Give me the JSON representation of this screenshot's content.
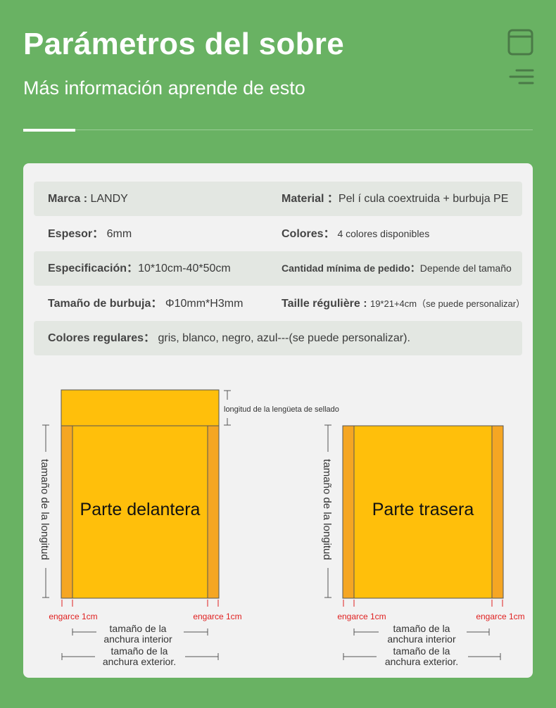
{
  "header": {
    "title": "Parámetros del sobre",
    "subtitle": "Más información aprende de esto"
  },
  "specs": {
    "brand_key": "Marca : ",
    "brand_val": "LANDY",
    "material_key": "Material ：",
    "material_val": "Pel í cula coextruida + burbuja PE",
    "thickness_key": "Espesor：",
    "thickness_val": " 6mm",
    "colors_key": "Colores：",
    "colors_val": " 4 colores disponibles",
    "spec_key": "Especificación：",
    "spec_val": "10*10cm-40*50cm",
    "moq_key": "Cantidad mínima de pedido：",
    "moq_val": "Depende del tamaño",
    "bubble_key": "Tamaño de burbuja：",
    "bubble_val": " Φ10mm*H3mm",
    "regular_size_key": "Taille régulière : ",
    "regular_size_val": "19*21+4cm（se puede personalizar）",
    "regular_colors_key": "Colores regulares：",
    "regular_colors_val": " gris, blanco, negro, azul---(se puede personalizar)."
  },
  "diagram": {
    "front_label": "Parte delantera",
    "back_label": "Parte trasera",
    "flap_label": "longitud de la lengüeta de sellado",
    "length_label": "tamaño de la longitud",
    "crimp_label": "engarce 1cm",
    "inner_width_line1": "tamaño de la",
    "inner_width_line2": "anchura interior",
    "outer_width_line1": "tamaño de la",
    "outer_width_line2": "anchura exterior."
  },
  "colors": {
    "background": "#69b263",
    "card": "#f2f2f2",
    "envelope_fill": "#ffbf0b",
    "crimp_fill": "#f5a623",
    "crimp_text": "#e02020"
  },
  "icons": [
    "window-icon",
    "menu-lines-icon"
  ]
}
